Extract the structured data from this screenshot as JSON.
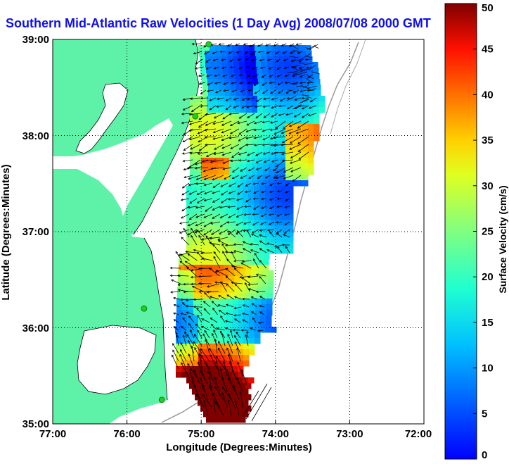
{
  "title": "Southern Mid-Atlantic Raw Velocities (1 Day Avg) 2008/07/08 2000 GMT",
  "xlabel": "Longitude (Degrees:Minutes)",
  "ylabel": "Latitude (Degrees:Minutes)",
  "x_ticks": [
    "77:00",
    "76:00",
    "75:00",
    "74:00",
    "73:00",
    "72:00"
  ],
  "y_ticks": [
    "39:00",
    "38:00",
    "37:00",
    "36:00",
    "35:00"
  ],
  "colorbar": {
    "label": "Surface Velocity (cm/s)",
    "ticks": [
      "0",
      "5",
      "10",
      "15",
      "20",
      "25",
      "30",
      "35",
      "40",
      "45",
      "50"
    ],
    "range": [
      0,
      50
    ]
  },
  "colors": {
    "land": "#5ef2a8",
    "title": "#1010ee",
    "station": "#22cc22"
  },
  "map_extent": {
    "lon": [
      -77,
      -72
    ],
    "lat": [
      35,
      39
    ]
  },
  "stations": [
    {
      "lon": -74.9,
      "lat": 38.95
    },
    {
      "lon": -75.08,
      "lat": 38.2
    },
    {
      "lon": -75.77,
      "lat": 36.2
    },
    {
      "lon": -75.53,
      "lat": 35.25
    }
  ]
}
